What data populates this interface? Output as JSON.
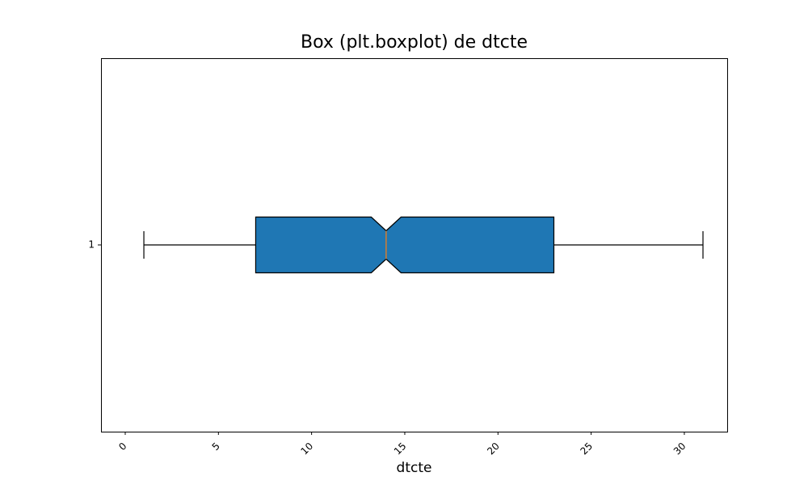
{
  "chart_data": {
    "type": "boxplot",
    "orientation": "horizontal",
    "notched": true,
    "title": "Box (plt.boxplot) de dtcte",
    "xlabel": "dtcte",
    "ylabel": "",
    "xlim": [
      -1.3,
      32.3
    ],
    "x_ticks": [
      0,
      5,
      10,
      15,
      20,
      25,
      30
    ],
    "x_tick_rotation": 45,
    "y_ticks": [
      "1"
    ],
    "grid": false,
    "box": {
      "label": "1",
      "whisker_low": 1,
      "q1": 7,
      "median": 14,
      "q3": 23,
      "whisker_high": 31,
      "notch_low": 13.2,
      "notch_high": 14.8
    },
    "colors": {
      "box_fill": "#1f77b4",
      "median_line": "#ff7f0e",
      "outline": "#000000"
    }
  }
}
